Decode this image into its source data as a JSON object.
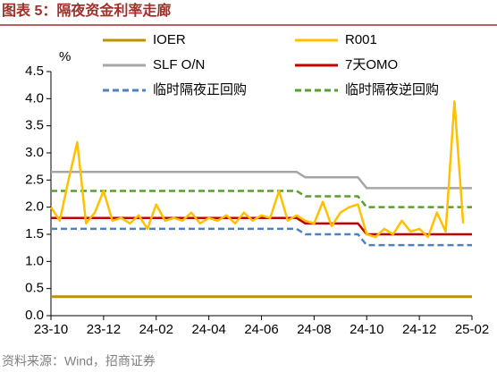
{
  "chart_data": {
    "type": "line",
    "title": "图表 5：隔夜资金利率走廊",
    "y_unit": "%",
    "source": "资料来源：Wind，招商证券",
    "categories": [
      "23-10",
      null,
      null,
      null,
      null,
      null,
      "23-12",
      null,
      null,
      null,
      null,
      null,
      "24-02",
      null,
      null,
      null,
      null,
      null,
      "24-04",
      null,
      null,
      null,
      null,
      null,
      "24-06",
      null,
      null,
      null,
      null,
      null,
      "24-08",
      null,
      null,
      null,
      null,
      null,
      "24-10",
      null,
      null,
      null,
      null,
      null,
      "24-12",
      null,
      null,
      null,
      null,
      null,
      "25-02"
    ],
    "series": [
      {
        "name": "IOER",
        "color": "#bf9000",
        "dash": false,
        "values": [
          0.35,
          0.35,
          0.35,
          0.35,
          0.35,
          0.35,
          0.35,
          0.35,
          0.35,
          0.35,
          0.35,
          0.35,
          0.35,
          0.35,
          0.35,
          0.35,
          0.35,
          0.35,
          0.35,
          0.35,
          0.35,
          0.35,
          0.35,
          0.35,
          0.35,
          0.35,
          0.35,
          0.35,
          0.35,
          0.35,
          0.35,
          0.35,
          0.35,
          0.35,
          0.35,
          0.35,
          0.35,
          0.35,
          0.35,
          0.35,
          0.35,
          0.35,
          0.35,
          0.35,
          0.35,
          0.35,
          0.35,
          0.35,
          0.35
        ]
      },
      {
        "name": "R001",
        "color": "#ffc000",
        "dash": false,
        "values": [
          2.0,
          1.75,
          2.5,
          3.2,
          1.7,
          1.9,
          2.3,
          1.75,
          1.8,
          1.7,
          1.85,
          1.6,
          2.05,
          1.75,
          1.8,
          1.75,
          1.9,
          1.7,
          1.8,
          1.75,
          1.85,
          1.7,
          1.9,
          1.75,
          1.85,
          1.8,
          2.3,
          1.75,
          1.85,
          1.75,
          1.7,
          2.1,
          1.65,
          1.9,
          2.0,
          2.05,
          1.5,
          1.45,
          1.6,
          1.5,
          1.75,
          1.55,
          1.6,
          1.45,
          1.9,
          1.55,
          3.95,
          1.7,
          null
        ]
      },
      {
        "name": "SLF O/N",
        "color": "#a6a6a6",
        "dash": false,
        "values": [
          2.65,
          2.65,
          2.65,
          2.65,
          2.65,
          2.65,
          2.65,
          2.65,
          2.65,
          2.65,
          2.65,
          2.65,
          2.65,
          2.65,
          2.65,
          2.65,
          2.65,
          2.65,
          2.65,
          2.65,
          2.65,
          2.65,
          2.65,
          2.65,
          2.65,
          2.65,
          2.65,
          2.65,
          2.65,
          2.55,
          2.55,
          2.55,
          2.55,
          2.55,
          2.55,
          2.55,
          2.35,
          2.35,
          2.35,
          2.35,
          2.35,
          2.35,
          2.35,
          2.35,
          2.35,
          2.35,
          2.35,
          2.35,
          2.35
        ]
      },
      {
        "name": "7天OMO",
        "color": "#c00000",
        "dash": false,
        "values": [
          1.8,
          1.8,
          1.8,
          1.8,
          1.8,
          1.8,
          1.8,
          1.8,
          1.8,
          1.8,
          1.8,
          1.8,
          1.8,
          1.8,
          1.8,
          1.8,
          1.8,
          1.8,
          1.8,
          1.8,
          1.8,
          1.8,
          1.8,
          1.8,
          1.8,
          1.8,
          1.8,
          1.8,
          1.8,
          1.7,
          1.7,
          1.7,
          1.7,
          1.7,
          1.7,
          1.7,
          1.5,
          1.5,
          1.5,
          1.5,
          1.5,
          1.5,
          1.5,
          1.5,
          1.5,
          1.5,
          1.5,
          1.5,
          1.5
        ]
      },
      {
        "name": "临时隔夜正回购",
        "color": "#4f81bd",
        "dash": true,
        "values": [
          1.6,
          1.6,
          1.6,
          1.6,
          1.6,
          1.6,
          1.6,
          1.6,
          1.6,
          1.6,
          1.6,
          1.6,
          1.6,
          1.6,
          1.6,
          1.6,
          1.6,
          1.6,
          1.6,
          1.6,
          1.6,
          1.6,
          1.6,
          1.6,
          1.6,
          1.6,
          1.6,
          1.6,
          1.6,
          1.5,
          1.5,
          1.5,
          1.5,
          1.5,
          1.5,
          1.5,
          1.3,
          1.3,
          1.3,
          1.3,
          1.3,
          1.3,
          1.3,
          1.3,
          1.3,
          1.3,
          1.3,
          1.3,
          1.3
        ]
      },
      {
        "name": "临时隔夜逆回购",
        "color": "#5a9e2f",
        "dash": true,
        "values": [
          2.3,
          2.3,
          2.3,
          2.3,
          2.3,
          2.3,
          2.3,
          2.3,
          2.3,
          2.3,
          2.3,
          2.3,
          2.3,
          2.3,
          2.3,
          2.3,
          2.3,
          2.3,
          2.3,
          2.3,
          2.3,
          2.3,
          2.3,
          2.3,
          2.3,
          2.3,
          2.3,
          2.3,
          2.3,
          2.2,
          2.2,
          2.2,
          2.2,
          2.2,
          2.2,
          2.2,
          2.0,
          2.0,
          2.0,
          2.0,
          2.0,
          2.0,
          2.0,
          2.0,
          2.0,
          2.0,
          2.0,
          2.0,
          2.0
        ]
      }
    ],
    "ylim": [
      0,
      4.5
    ],
    "yticks": [
      {
        "value": 0,
        "label": "0.0"
      },
      0.5,
      {
        "value": 1,
        "label": "1.0"
      },
      1.5,
      {
        "value": 2,
        "label": "2.0"
      },
      2.5,
      {
        "value": 3,
        "label": "3.0"
      },
      3.5,
      {
        "value": 4,
        "label": "4.0"
      },
      4.5
    ],
    "grid": false
  }
}
